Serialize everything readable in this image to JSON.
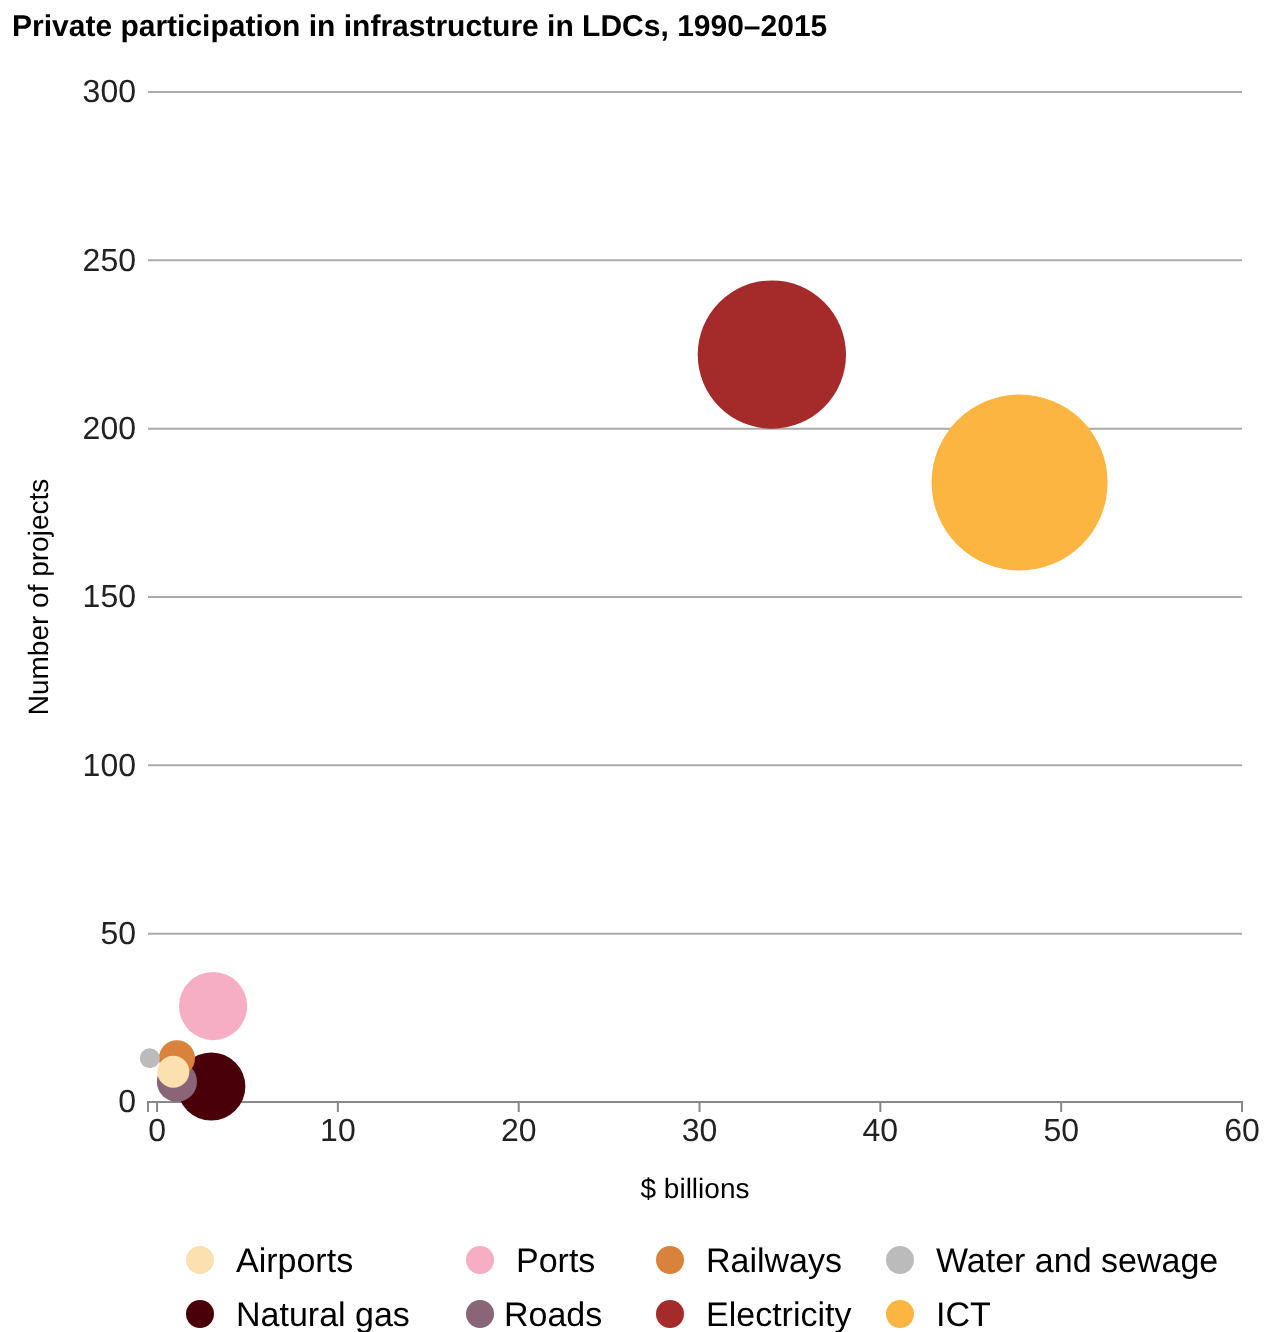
{
  "chart_data": {
    "type": "bubble",
    "title": "Private participation in infrastructure in LDCs, 1990–2015",
    "xlabel": "$ billions",
    "ylabel": "Number of projects",
    "xlim": [
      -0.5,
      60
    ],
    "xticks": [
      0,
      10,
      20,
      30,
      40,
      50,
      60
    ],
    "ylim": [
      0,
      300
    ],
    "yticks": [
      0,
      50,
      100,
      150,
      200,
      250,
      300
    ],
    "grid": "y",
    "legend": "bottom",
    "series": [
      {
        "name": "Airports",
        "color": "#fde0b0",
        "x": [
          0.9
        ],
        "values": [
          9
        ],
        "sizes": [
          0.033
        ]
      },
      {
        "name": "Ports",
        "color": "#f6aec5",
        "x": [
          3.1
        ],
        "values": [
          28.5
        ],
        "sizes": [
          0.15
        ]
      },
      {
        "name": "Railways",
        "color": "#d9823b",
        "x": [
          1.1
        ],
        "values": [
          13
        ],
        "sizes": [
          0.042
        ]
      },
      {
        "name": "Water and sewage",
        "color": "#bbbbbb",
        "x": [
          -0.4
        ],
        "values": [
          13
        ],
        "sizes": [
          0.013
        ]
      },
      {
        "name": "Natural gas",
        "color": "#4a0008",
        "x": [
          3
        ],
        "values": [
          4.6
        ],
        "sizes": [
          0.15
        ]
      },
      {
        "name": "Roads",
        "color": "#8a6577",
        "x": [
          1.1
        ],
        "values": [
          6
        ],
        "sizes": [
          0.052
        ]
      },
      {
        "name": "Electricity",
        "color": "#a52a2a",
        "x": [
          34
        ],
        "values": [
          222
        ],
        "sizes": [
          0.71
        ]
      },
      {
        "name": "ICT",
        "color": "#fbb540",
        "x": [
          47.7
        ],
        "values": [
          184
        ],
        "sizes": [
          1
        ]
      }
    ]
  }
}
